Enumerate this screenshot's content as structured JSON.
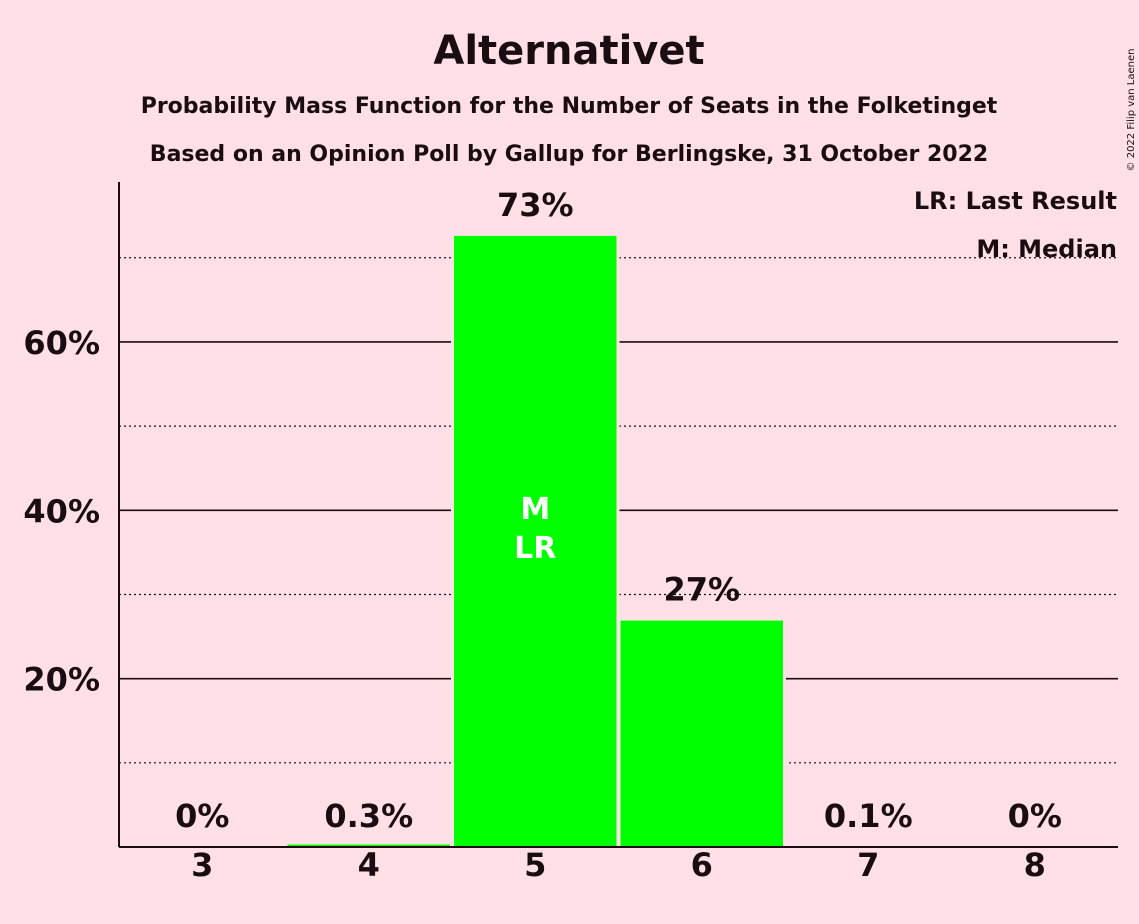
{
  "chart_data": {
    "type": "bar",
    "title": "Alternativet",
    "subtitle_1": "Probability Mass Function for the Number of Seats in the Folketinget",
    "subtitle_2": "Based on an Opinion Poll by Gallup for Berlingske, 31 October 2022",
    "copyright": "© 2022 Filip van Laenen",
    "categories": [
      "3",
      "4",
      "5",
      "6",
      "7",
      "8"
    ],
    "values": [
      0,
      0.3,
      72.6,
      26.9,
      0.1,
      0
    ],
    "value_labels": [
      "0%",
      "0.3%",
      "73%",
      "27%",
      "0.1%",
      "0%"
    ],
    "bar_color": "#00ff00",
    "ylim": [
      0,
      79
    ],
    "major_ticks": [
      20,
      40,
      60
    ],
    "major_tick_labels": [
      "20%",
      "40%",
      "60%"
    ],
    "minor_gridlines": [
      10,
      30,
      50,
      70
    ],
    "median_category": "5",
    "last_result_category": "5",
    "median_marker": "M",
    "last_result_marker": "LR",
    "legend": {
      "position": "top-right",
      "items": [
        "LR: Last Result",
        "M: Median"
      ]
    }
  }
}
